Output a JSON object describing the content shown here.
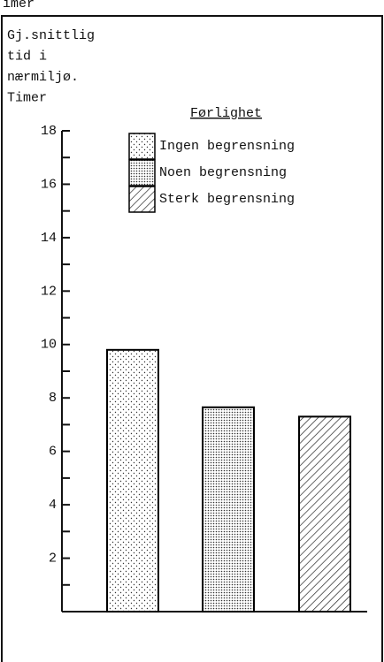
{
  "header_text": "Timer",
  "chart_data": {
    "type": "bar",
    "title_lines": [
      "Gj.snittlig",
      "tid i",
      "nærmiljø.",
      "Timer"
    ],
    "legend_title": "Førlighet",
    "categories": [
      null,
      null,
      null
    ],
    "series": [
      {
        "name": "Ingen begrensning",
        "color": "#000000",
        "pattern": "sparse-dots",
        "values": [
          9.8,
          null,
          null
        ]
      },
      {
        "name": "Noen begrensning",
        "color": "#000000",
        "pattern": "dense-dots",
        "values": [
          null,
          7.65,
          null
        ]
      },
      {
        "name": "Sterk begrensning",
        "color": "#000000",
        "pattern": "hatch",
        "values": [
          null,
          null,
          7.3
        ]
      }
    ],
    "ylim": [
      0,
      18
    ],
    "yticks": [
      2,
      4,
      6,
      8,
      10,
      12,
      14,
      16,
      18
    ],
    "minor_yticks": [
      1,
      3,
      5,
      7,
      9,
      11,
      13,
      15,
      17
    ]
  }
}
